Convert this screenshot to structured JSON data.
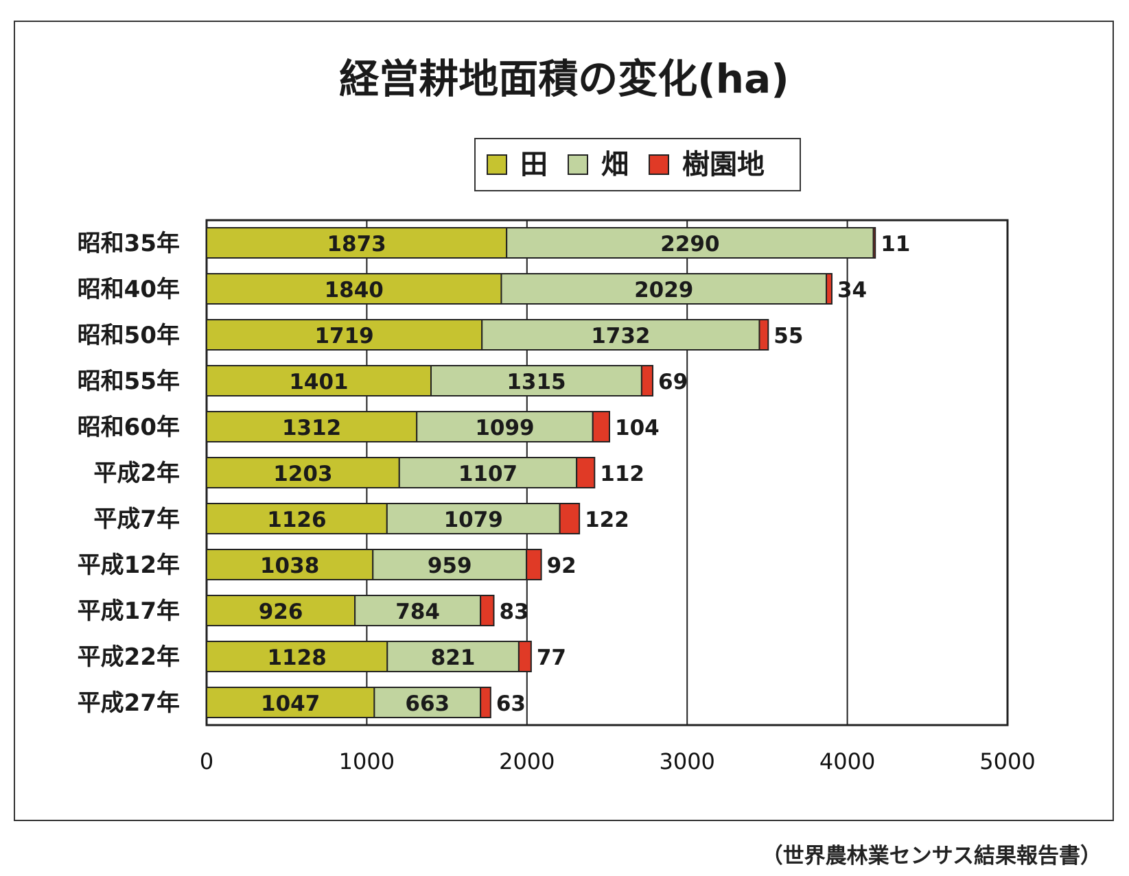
{
  "chart_data": {
    "type": "bar",
    "orientation": "horizontal",
    "stacked": true,
    "title": "経営耕地面積の変化(ha)",
    "categories": [
      "昭和35年",
      "昭和40年",
      "昭和50年",
      "昭和55年",
      "昭和60年",
      "平成2年",
      "平成7年",
      "平成12年",
      "平成17年",
      "平成22年",
      "平成27年"
    ],
    "series": [
      {
        "name": "田",
        "color": "#c6c330",
        "values": [
          1873,
          1840,
          1719,
          1401,
          1312,
          1203,
          1126,
          1038,
          926,
          1128,
          1047
        ]
      },
      {
        "name": "畑",
        "color": "#c1d49f",
        "values": [
          2290,
          2029,
          1732,
          1315,
          1099,
          1107,
          1079,
          959,
          784,
          821,
          663
        ]
      },
      {
        "name": "樹園地",
        "color": "#e03a26",
        "values": [
          11,
          34,
          55,
          69,
          104,
          112,
          122,
          92,
          83,
          77,
          63
        ]
      }
    ],
    "xlim": [
      0,
      5000
    ],
    "xticks": [
      0,
      1000,
      2000,
      3000,
      4000,
      5000
    ],
    "grid": true,
    "legend": "top-center"
  },
  "source_note": "（世界農林業センサス結果報告書）"
}
